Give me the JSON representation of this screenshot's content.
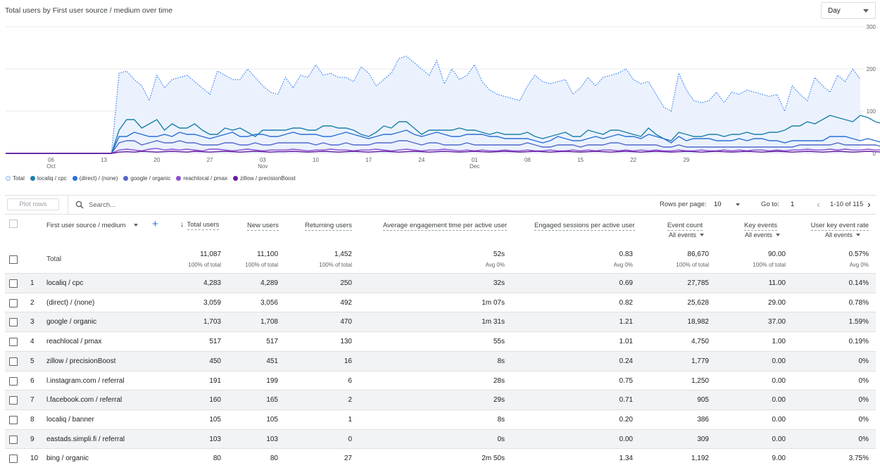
{
  "chart": {
    "title": "Total users by First user source / medium over time",
    "granularity": "Day",
    "y_ticks": [
      "300",
      "200",
      "100",
      "0"
    ],
    "x_ticks": [
      {
        "day": "06",
        "month": "Oct"
      },
      {
        "day": "13",
        "month": ""
      },
      {
        "day": "20",
        "month": ""
      },
      {
        "day": "27",
        "month": ""
      },
      {
        "day": "03",
        "month": "Nov"
      },
      {
        "day": "10",
        "month": ""
      },
      {
        "day": "17",
        "month": ""
      },
      {
        "day": "24",
        "month": ""
      },
      {
        "day": "01",
        "month": "Dec"
      },
      {
        "day": "08",
        "month": ""
      },
      {
        "day": "15",
        "month": ""
      },
      {
        "day": "22",
        "month": ""
      },
      {
        "day": "29",
        "month": ""
      }
    ],
    "legend": [
      {
        "label": "Total",
        "color": "#4285f4"
      },
      {
        "label": "localiq / cpc",
        "color": "#1a7fa8"
      },
      {
        "label": "(direct) / (none)",
        "color": "#2a6fd6"
      },
      {
        "label": "google / organic",
        "color": "#5367c9"
      },
      {
        "label": "reachlocal / pmax",
        "color": "#8a4fd0"
      },
      {
        "label": "zillow / precisionBoost",
        "color": "#6a1b9a"
      }
    ]
  },
  "chart_data": {
    "type": "line",
    "title": "Total users by First user source / medium over time",
    "xlabel": "",
    "ylabel": "",
    "ylim": [
      0,
      300
    ],
    "grid": true,
    "legend_position": "bottom-left",
    "x_range": [
      "Sep 30",
      "Jan 3"
    ],
    "series": [
      {
        "name": "Total",
        "style": "dotted-area",
        "color": "#4285f4",
        "values": [
          0,
          0,
          0,
          0,
          0,
          0,
          0,
          0,
          0,
          0,
          0,
          0,
          0,
          0,
          0,
          190,
          195,
          175,
          160,
          125,
          185,
          155,
          175,
          180,
          185,
          170,
          155,
          140,
          195,
          185,
          175,
          175,
          200,
          180,
          160,
          145,
          140,
          180,
          155,
          185,
          180,
          210,
          185,
          190,
          180,
          180,
          170,
          205,
          190,
          160,
          175,
          190,
          225,
          230,
          215,
          200,
          185,
          220,
          165,
          200,
          175,
          185,
          210,
          170,
          150,
          140,
          135,
          130,
          125,
          160,
          185,
          170,
          165,
          170,
          175,
          140,
          155,
          180,
          160,
          180,
          185,
          190,
          200,
          175,
          165,
          170,
          140,
          110,
          100,
          190,
          150,
          125,
          120,
          125,
          145,
          120,
          145,
          140,
          150,
          145,
          140,
          135,
          140,
          100,
          160,
          140,
          125,
          180,
          160,
          145,
          185,
          170,
          200,
          175
        ]
      },
      {
        "name": "localiq / cpc",
        "color": "#1a7fa8",
        "values": [
          0,
          0,
          0,
          0,
          0,
          0,
          0,
          0,
          0,
          0,
          0,
          0,
          0,
          0,
          0,
          55,
          80,
          80,
          60,
          70,
          80,
          55,
          70,
          60,
          60,
          70,
          55,
          45,
          45,
          60,
          55,
          60,
          50,
          40,
          55,
          55,
          55,
          55,
          60,
          60,
          55,
          55,
          65,
          65,
          60,
          60,
          55,
          45,
          40,
          50,
          65,
          60,
          75,
          75,
          60,
          45,
          55,
          55,
          55,
          55,
          60,
          55,
          55,
          50,
          45,
          50,
          45,
          45,
          45,
          50,
          40,
          35,
          40,
          45,
          50,
          40,
          40,
          55,
          50,
          45,
          55,
          55,
          50,
          45,
          40,
          60,
          45,
          35,
          30,
          50,
          45,
          40,
          40,
          45,
          45,
          40,
          45,
          45,
          50,
          45,
          45,
          50,
          50,
          55,
          65,
          65,
          75,
          70,
          80,
          90,
          85,
          80,
          75,
          90,
          85,
          75,
          70
        ]
      },
      {
        "name": "(direct) / (none)",
        "color": "#2a6fd6",
        "values": [
          0,
          0,
          0,
          0,
          0,
          0,
          0,
          0,
          0,
          0,
          0,
          0,
          0,
          0,
          0,
          40,
          40,
          50,
          45,
          40,
          40,
          45,
          40,
          50,
          45,
          45,
          40,
          35,
          40,
          45,
          50,
          40,
          40,
          45,
          45,
          40,
          40,
          45,
          50,
          45,
          45,
          45,
          40,
          40,
          45,
          50,
          45,
          40,
          35,
          40,
          45,
          45,
          50,
          55,
          45,
          40,
          45,
          50,
          45,
          40,
          40,
          45,
          45,
          45,
          40,
          40,
          35,
          35,
          35,
          35,
          30,
          25,
          30,
          40,
          35,
          30,
          30,
          35,
          40,
          35,
          40,
          45,
          40,
          40,
          35,
          45,
          40,
          35,
          25,
          40,
          30,
          35,
          35,
          35,
          30,
          30,
          30,
          35,
          30,
          35,
          35,
          30,
          30,
          25,
          30,
          30,
          30,
          30,
          30,
          40,
          40,
          40,
          35,
          30,
          35,
          30,
          25
        ]
      },
      {
        "name": "google / organic",
        "color": "#5367c9",
        "values": [
          0,
          0,
          0,
          0,
          0,
          0,
          0,
          0,
          0,
          0,
          0,
          0,
          0,
          0,
          0,
          25,
          30,
          30,
          20,
          25,
          30,
          25,
          25,
          30,
          25,
          25,
          20,
          20,
          20,
          25,
          25,
          20,
          20,
          25,
          20,
          20,
          25,
          25,
          25,
          25,
          25,
          20,
          25,
          20,
          20,
          25,
          20,
          20,
          20,
          25,
          25,
          25,
          30,
          30,
          25,
          20,
          25,
          25,
          20,
          20,
          20,
          25,
          20,
          20,
          20,
          20,
          20,
          20,
          20,
          25,
          20,
          15,
          15,
          20,
          20,
          20,
          15,
          20,
          20,
          20,
          25,
          25,
          20,
          20,
          20,
          20,
          20,
          15,
          15,
          20,
          15,
          15,
          15,
          15,
          15,
          15,
          15,
          15,
          15,
          15,
          15,
          15,
          15,
          15,
          15,
          20,
          20,
          20,
          20,
          20,
          25,
          20,
          20,
          20,
          20,
          20,
          15
        ]
      },
      {
        "name": "reachlocal / pmax",
        "color": "#8a4fd0",
        "values": [
          0,
          0,
          0,
          0,
          0,
          0,
          0,
          0,
          0,
          0,
          0,
          0,
          0,
          0,
          0,
          8,
          10,
          8,
          6,
          10,
          12,
          8,
          10,
          8,
          10,
          8,
          6,
          10,
          10,
          8,
          6,
          8,
          10,
          8,
          6,
          8,
          8,
          8,
          10,
          8,
          6,
          8,
          8,
          10,
          8,
          8,
          6,
          8,
          8,
          10,
          8,
          6,
          8,
          10,
          8,
          6,
          8,
          8,
          10,
          8,
          6,
          8,
          6,
          8,
          6,
          6,
          8,
          6,
          6,
          8,
          6,
          6,
          8,
          6,
          6,
          8,
          6,
          8,
          6,
          8,
          8,
          6,
          8,
          6,
          8,
          6,
          8,
          6,
          6,
          8,
          6,
          6,
          8,
          6,
          6,
          8,
          6,
          8,
          6,
          8,
          8,
          6,
          8,
          6,
          8,
          8,
          10,
          8,
          8,
          10,
          8,
          10,
          8,
          8,
          10,
          8,
          8
        ]
      },
      {
        "name": "zillow / precisionBoost",
        "color": "#6a1b9a",
        "values": [
          0,
          0,
          0,
          0,
          0,
          0,
          0,
          0,
          0,
          0,
          0,
          0,
          0,
          0,
          0,
          3,
          4,
          3,
          5,
          4,
          3,
          4,
          5,
          4,
          3,
          5,
          4,
          3,
          4,
          5,
          4,
          3,
          4,
          5,
          4,
          3,
          4,
          4,
          5,
          4,
          3,
          4,
          5,
          4,
          3,
          4,
          5,
          4,
          3,
          4,
          5,
          4,
          3,
          4,
          5,
          4,
          3,
          4,
          5,
          4,
          3,
          4,
          5,
          4,
          3,
          4,
          5,
          4,
          3,
          4,
          5,
          4,
          3,
          4,
          5,
          4,
          3,
          4,
          5,
          4,
          3,
          4,
          5,
          4,
          3,
          4,
          5,
          4,
          3,
          4,
          5,
          4,
          3,
          4,
          5,
          4,
          3,
          4,
          5,
          4,
          3,
          4,
          5,
          4,
          3,
          4,
          5,
          4,
          3,
          4,
          5,
          4,
          3,
          4,
          5,
          4,
          3
        ]
      }
    ]
  },
  "toolbar": {
    "plot_rows_label": "Plot rows",
    "search_placeholder": "Search...",
    "rows_per_page_label": "Rows per page:",
    "rows_per_page_value": "10",
    "goto_label": "Go to:",
    "goto_value": "1",
    "page_range": "1-10 of 115"
  },
  "table": {
    "dimension_header": "First user source / medium",
    "headers": {
      "total_users": "Total users",
      "new_users": "New users",
      "returning_users": "Returning users",
      "avg_engagement": "Average engagement time per active user",
      "engaged_sessions": "Engaged sessions per active user",
      "event_count": "Event count",
      "event_count_sub": "All events",
      "key_events": "Key events",
      "key_events_sub": "All events",
      "user_key_event_rate": "User key event rate",
      "user_key_event_rate_sub": "All events"
    },
    "totals": {
      "label": "Total",
      "total_users": "11,087",
      "total_users_sub": "100% of total",
      "new_users": "11,100",
      "new_users_sub": "100% of total",
      "returning_users": "1,452",
      "returning_users_sub": "100% of total",
      "avg_engagement": "52s",
      "avg_engagement_sub": "Avg 0%",
      "engaged_sessions": "0.83",
      "engaged_sessions_sub": "Avg 0%",
      "event_count": "86,670",
      "event_count_sub": "100% of total",
      "key_events": "90.00",
      "key_events_sub": "100% of total",
      "user_key_event_rate": "0.57%",
      "user_key_event_rate_sub": "Avg 0%"
    },
    "rows": [
      {
        "idx": "1",
        "source": "localiq / cpc",
        "total_users": "4,283",
        "new_users": "4,289",
        "returning_users": "250",
        "avg_engagement": "32s",
        "engaged_sessions": "0.69",
        "event_count": "27,785",
        "key_events": "11.00",
        "rate": "0.14%"
      },
      {
        "idx": "2",
        "source": "(direct) / (none)",
        "total_users": "3,059",
        "new_users": "3,056",
        "returning_users": "492",
        "avg_engagement": "1m 07s",
        "engaged_sessions": "0.82",
        "event_count": "25,628",
        "key_events": "29.00",
        "rate": "0.78%"
      },
      {
        "idx": "3",
        "source": "google / organic",
        "total_users": "1,703",
        "new_users": "1,708",
        "returning_users": "470",
        "avg_engagement": "1m 31s",
        "engaged_sessions": "1.21",
        "event_count": "18,982",
        "key_events": "37.00",
        "rate": "1.59%"
      },
      {
        "idx": "4",
        "source": "reachlocal / pmax",
        "total_users": "517",
        "new_users": "517",
        "returning_users": "130",
        "avg_engagement": "55s",
        "engaged_sessions": "1.01",
        "event_count": "4,750",
        "key_events": "1.00",
        "rate": "0.19%"
      },
      {
        "idx": "5",
        "source": "zillow / precisionBoost",
        "total_users": "450",
        "new_users": "451",
        "returning_users": "16",
        "avg_engagement": "8s",
        "engaged_sessions": "0.24",
        "event_count": "1,779",
        "key_events": "0.00",
        "rate": "0%"
      },
      {
        "idx": "6",
        "source": "l.instagram.com / referral",
        "total_users": "191",
        "new_users": "199",
        "returning_users": "6",
        "avg_engagement": "28s",
        "engaged_sessions": "0.75",
        "event_count": "1,250",
        "key_events": "0.00",
        "rate": "0%"
      },
      {
        "idx": "7",
        "source": "l.facebook.com / referral",
        "total_users": "160",
        "new_users": "165",
        "returning_users": "2",
        "avg_engagement": "29s",
        "engaged_sessions": "0.71",
        "event_count": "905",
        "key_events": "0.00",
        "rate": "0%"
      },
      {
        "idx": "8",
        "source": "localiq / banner",
        "total_users": "105",
        "new_users": "105",
        "returning_users": "1",
        "avg_engagement": "8s",
        "engaged_sessions": "0.20",
        "event_count": "386",
        "key_events": "0.00",
        "rate": "0%"
      },
      {
        "idx": "9",
        "source": "eastads.simpli.fi / referral",
        "total_users": "103",
        "new_users": "103",
        "returning_users": "0",
        "avg_engagement": "0s",
        "engaged_sessions": "0.00",
        "event_count": "309",
        "key_events": "0.00",
        "rate": "0%"
      },
      {
        "idx": "10",
        "source": "bing / organic",
        "total_users": "80",
        "new_users": "80",
        "returning_users": "27",
        "avg_engagement": "2m 50s",
        "engaged_sessions": "1.34",
        "event_count": "1,192",
        "key_events": "9.00",
        "rate": "3.75%"
      }
    ]
  }
}
